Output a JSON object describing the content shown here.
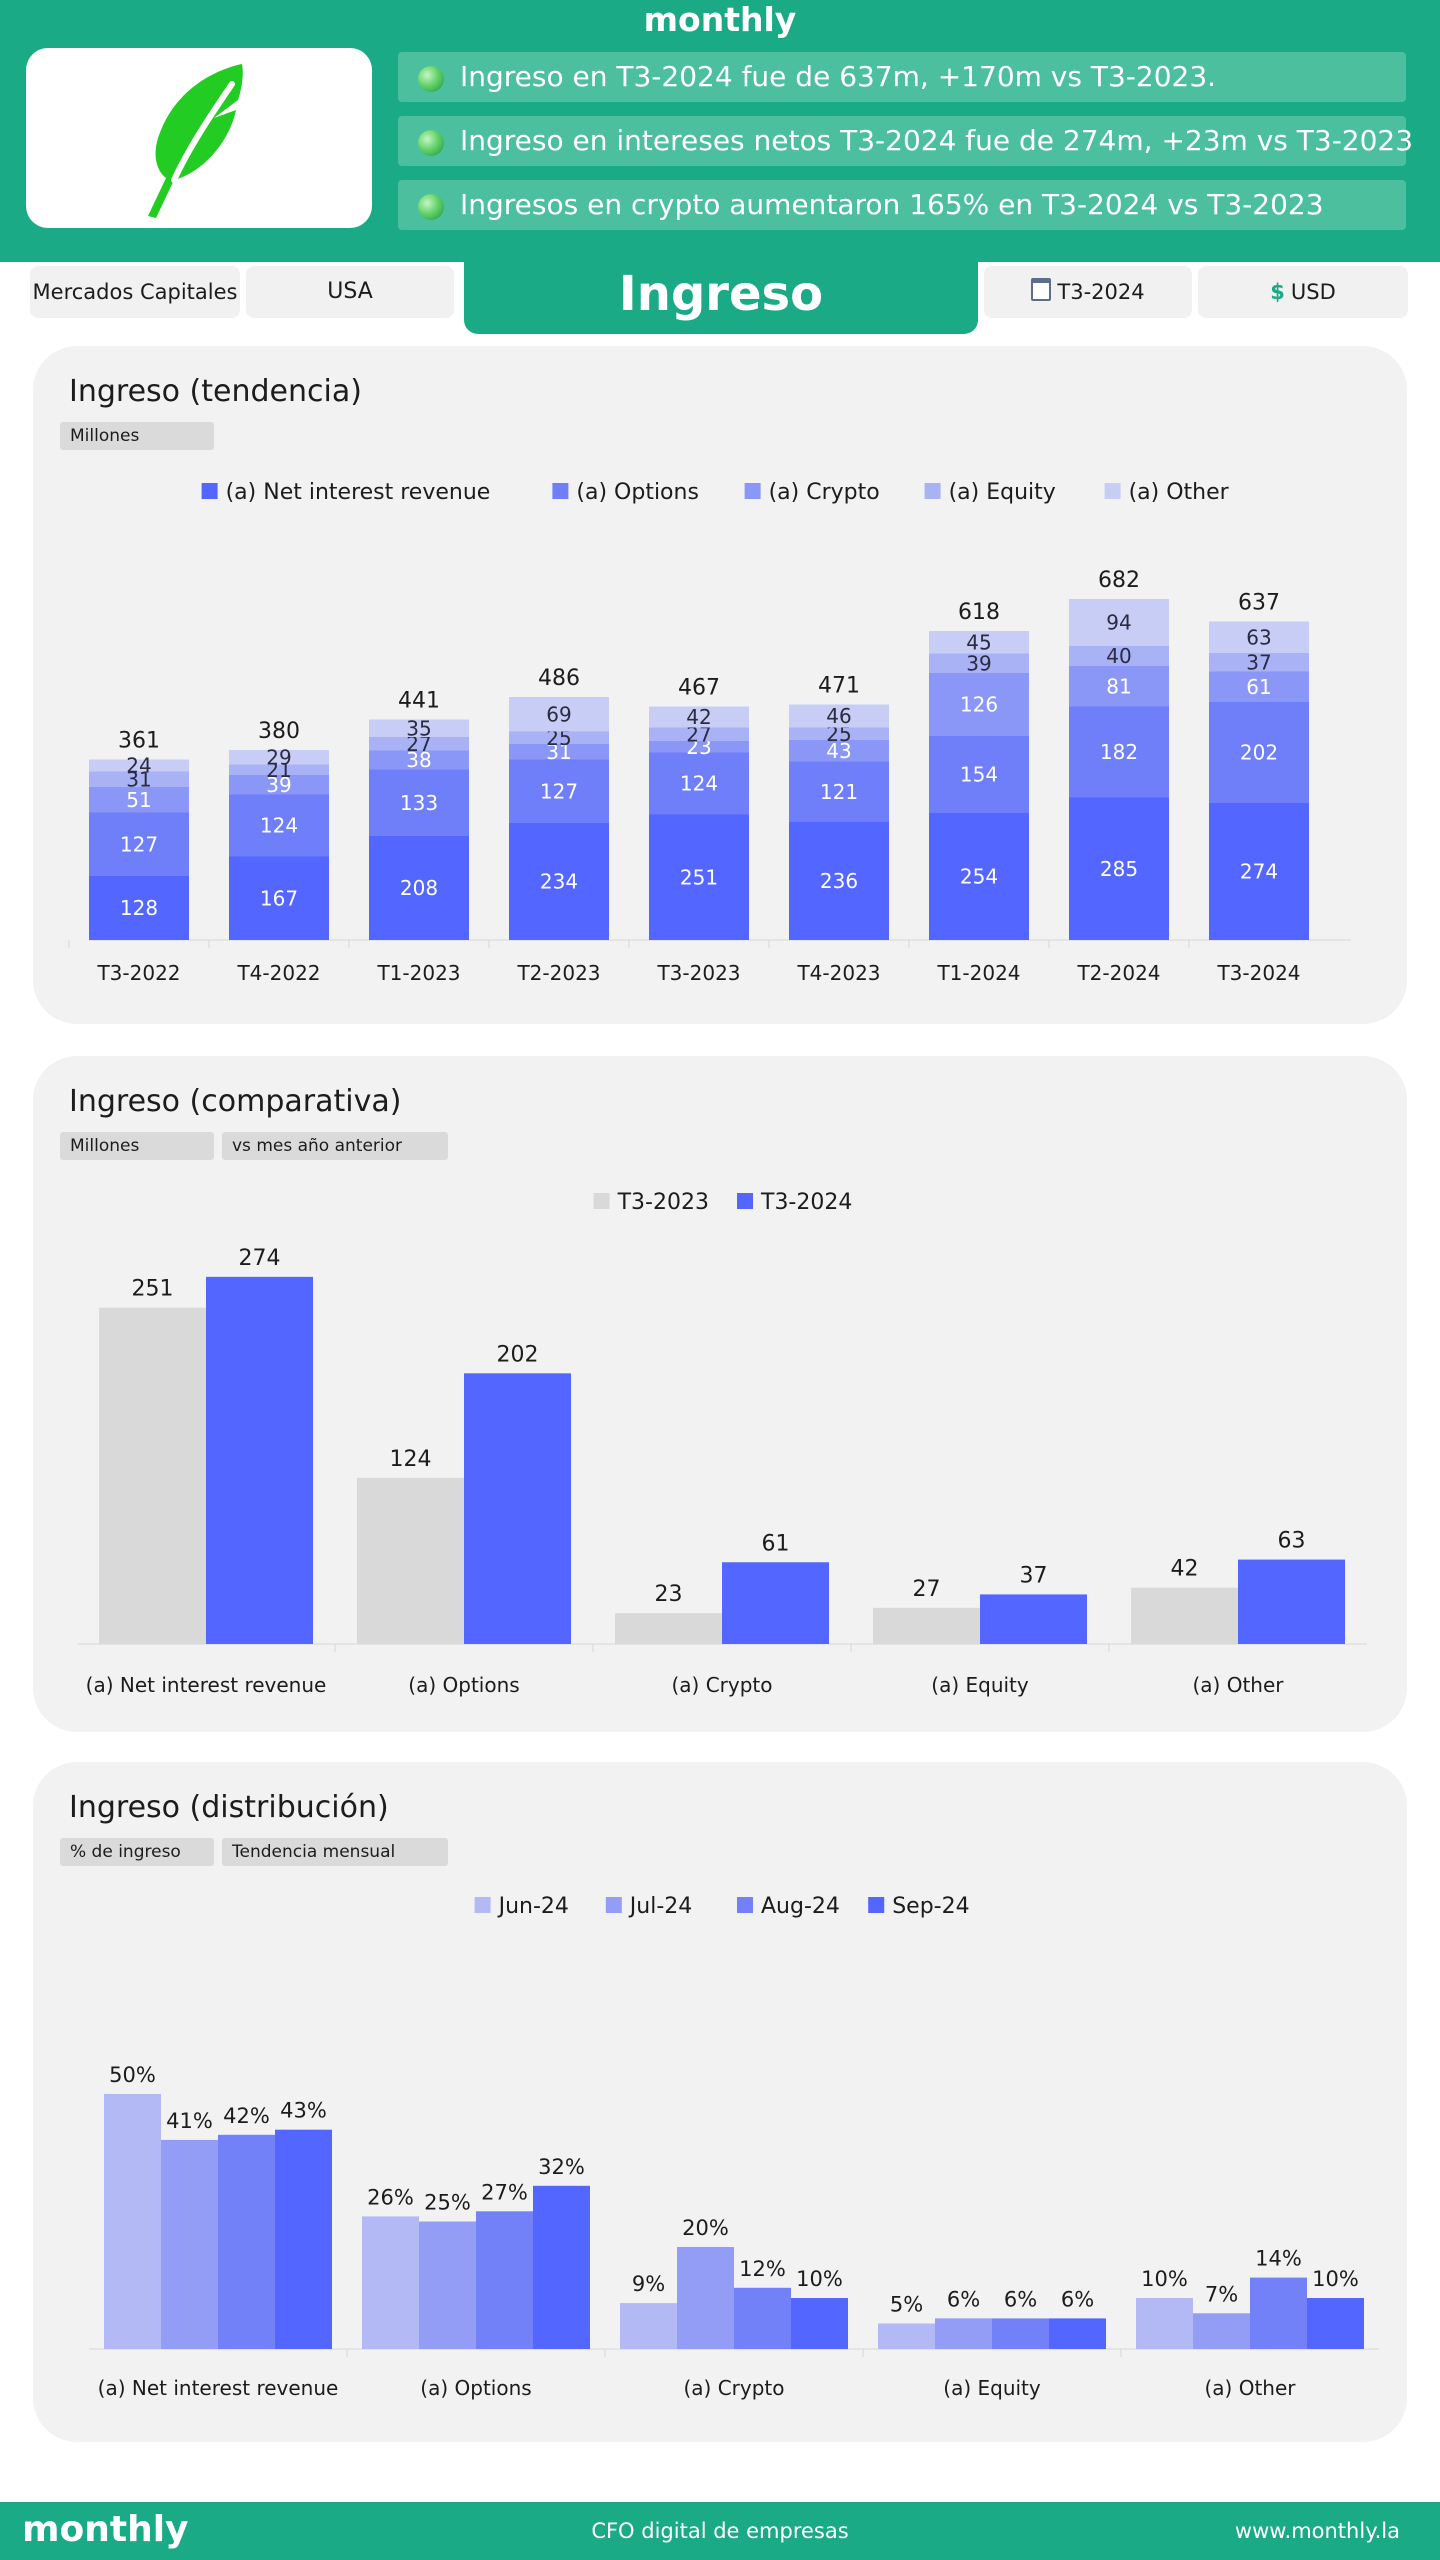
{
  "header": {
    "brand": "monthly",
    "bullets": [
      "Ingreso en T3-2024 fue de 637m, +170m vs T3-2023.",
      "Ingreso en intereses netos T3-2024 fue de 274m, +23m vs T3-2023",
      "Ingresos en crypto aumentaron 165% en T3-2024 vs T3-2023"
    ]
  },
  "filters": {
    "market": "Mercados Capitales",
    "country": "USA",
    "page_title": "Ingreso",
    "period": "T3-2024",
    "currency": "USD"
  },
  "colors": {
    "brand_green": "#1aaa86",
    "series": [
      "#5366ff",
      "#6f7ef9",
      "#8b97f6",
      "#a9b2f5",
      "#c7cdf5"
    ],
    "prev_year": "#d9d9d9",
    "months": [
      "#b3b9f5",
      "#939df6",
      "#7381f9",
      "#5366ff"
    ]
  },
  "cards": {
    "trend": {
      "title": "Ingreso (tendencia)",
      "tag": "Millones"
    },
    "compare": {
      "title": "Ingreso (comparativa)",
      "tag1": "Millones",
      "tag2": "vs mes año anterior"
    },
    "dist": {
      "title": "Ingreso (distribución)",
      "tag1": "% de ingreso",
      "tag2": "Tendencia mensual"
    }
  },
  "chart_data": [
    {
      "type": "bar",
      "stacked": true,
      "title": "Ingreso (tendencia)",
      "ylabel": "Millones",
      "categories": [
        "T3-2022",
        "T4-2022",
        "T1-2023",
        "T2-2023",
        "T3-2023",
        "T4-2023",
        "T1-2024",
        "T2-2024",
        "T3-2024"
      ],
      "series": [
        {
          "name": "(a) Net interest revenue",
          "values": [
            128,
            167,
            208,
            234,
            251,
            236,
            254,
            285,
            274
          ]
        },
        {
          "name": "(a) Options",
          "values": [
            127,
            124,
            133,
            127,
            124,
            121,
            154,
            182,
            202
          ]
        },
        {
          "name": "(a) Crypto",
          "values": [
            51,
            39,
            38,
            31,
            23,
            43,
            126,
            81,
            61
          ]
        },
        {
          "name": "(a) Equity",
          "values": [
            31,
            21,
            27,
            25,
            27,
            25,
            39,
            40,
            37
          ]
        },
        {
          "name": "(a) Other",
          "values": [
            24,
            29,
            35,
            69,
            42,
            46,
            45,
            94,
            63
          ]
        }
      ],
      "totals": [
        361,
        380,
        441,
        486,
        467,
        471,
        618,
        682,
        637
      ],
      "legend": "top"
    },
    {
      "type": "bar",
      "title": "Ingreso (comparativa)",
      "ylabel": "Millones",
      "categories": [
        "(a) Net interest revenue",
        "(a) Options",
        "(a) Crypto",
        "(a) Equity",
        "(a) Other"
      ],
      "series": [
        {
          "name": "T3-2023",
          "values": [
            251,
            124,
            23,
            27,
            42
          ]
        },
        {
          "name": "T3-2024",
          "values": [
            274,
            202,
            61,
            37,
            63
          ]
        }
      ],
      "legend": "top"
    },
    {
      "type": "bar",
      "title": "Ingreso (distribución)",
      "ylabel": "% de ingreso",
      "unit": "%",
      "categories": [
        "(a) Net interest revenue",
        "(a) Options",
        "(a) Crypto",
        "(a) Equity",
        "(a) Other"
      ],
      "series": [
        {
          "name": "Jun-24",
          "values": [
            50,
            26,
            9,
            5,
            10
          ]
        },
        {
          "name": "Jul-24",
          "values": [
            41,
            25,
            20,
            6,
            7
          ]
        },
        {
          "name": "Aug-24",
          "values": [
            42,
            27,
            12,
            6,
            14
          ]
        },
        {
          "name": "Sep-24",
          "values": [
            43,
            32,
            10,
            6,
            10
          ]
        }
      ],
      "legend": "top"
    }
  ],
  "footer": {
    "brand": "monthly",
    "tagline": "CFO digital de empresas",
    "url": "www.monthly.la"
  }
}
